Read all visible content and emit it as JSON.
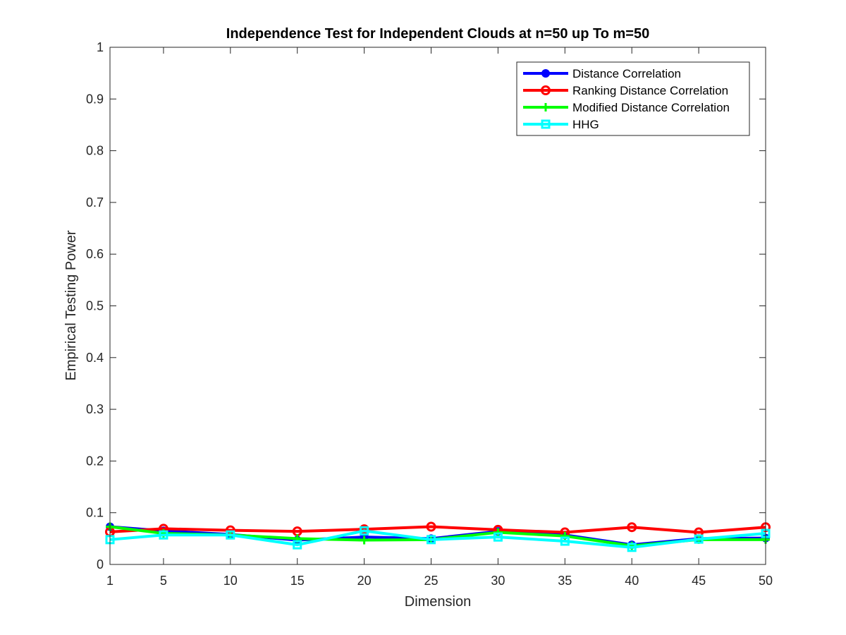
{
  "chart_data": {
    "type": "line",
    "title": "Independence Test for Independent Clouds at n=50 up To m=50",
    "xlabel": "Dimension",
    "ylabel": "Empirical Testing Power",
    "x": [
      1,
      5,
      10,
      15,
      20,
      25,
      30,
      35,
      40,
      45,
      50
    ],
    "xticks": [
      "1",
      "5",
      "10",
      "15",
      "20",
      "25",
      "30",
      "35",
      "40",
      "45",
      "50"
    ],
    "xlim": [
      1,
      50
    ],
    "yticks": [
      "0",
      "0.1",
      "0.2",
      "0.3",
      "0.4",
      "0.5",
      "0.6",
      "0.7",
      "0.8",
      "0.9",
      "1"
    ],
    "ylim": [
      0,
      1
    ],
    "grid": false,
    "legend_position": "top-right",
    "series": [
      {
        "name": "Distance Correlation",
        "color": "#0000ff",
        "marker": "filled-circle",
        "values": [
          0.073,
          0.065,
          0.058,
          0.047,
          0.053,
          0.05,
          0.064,
          0.057,
          0.038,
          0.05,
          0.051
        ]
      },
      {
        "name": "Ranking Distance Correlation",
        "color": "#ff0000",
        "marker": "open-circle",
        "values": [
          0.063,
          0.069,
          0.066,
          0.064,
          0.068,
          0.073,
          0.067,
          0.062,
          0.072,
          0.062,
          0.072
        ]
      },
      {
        "name": "Modified Distance Correlation",
        "color": "#00ff00",
        "marker": "plus",
        "values": [
          0.073,
          0.06,
          0.057,
          0.05,
          0.047,
          0.048,
          0.062,
          0.055,
          0.036,
          0.048,
          0.048
        ]
      },
      {
        "name": "HHG",
        "color": "#00ffff",
        "marker": "square",
        "values": [
          0.048,
          0.057,
          0.057,
          0.038,
          0.065,
          0.048,
          0.053,
          0.045,
          0.033,
          0.049,
          0.06
        ]
      }
    ]
  }
}
